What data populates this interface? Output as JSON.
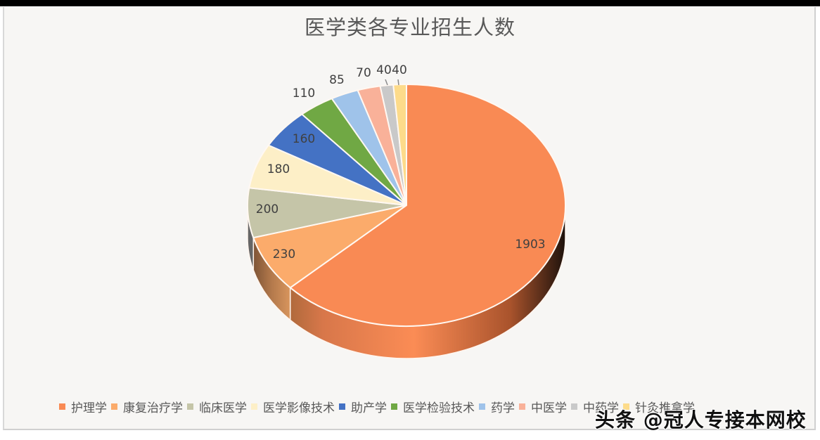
{
  "chart_data": {
    "type": "pie",
    "title": "医学类各专业招生人数",
    "style": "3d-pie",
    "start_angle_deg": 0,
    "direction": "clockwise",
    "categories": [
      "护理学",
      "康复治疗学",
      "临床医学",
      "医学影像技术",
      "助产学",
      "医学检验技术",
      "药学",
      "中医学",
      "中药学",
      "针灸推拿学"
    ],
    "values": [
      1903,
      230,
      200,
      180,
      160,
      110,
      85,
      70,
      40,
      40
    ],
    "colors": [
      "#f98a54",
      "#fbab6b",
      "#c5c5a8",
      "#fdefc7",
      "#4472c4",
      "#70a844",
      "#9fc3ea",
      "#f9b199",
      "#c9c9c9",
      "#fddb8a"
    ],
    "data_labels": [
      "1903",
      "230",
      "200",
      "180",
      "160",
      "110",
      "85",
      "70",
      "40",
      "40"
    ],
    "legend_position": "bottom"
  },
  "legend": {
    "items": [
      {
        "label": "护理学",
        "color": "#f98a54"
      },
      {
        "label": "康复治疗学",
        "color": "#fbab6b"
      },
      {
        "label": "临床医学",
        "color": "#c5c5a8"
      },
      {
        "label": "医学影像技术",
        "color": "#fdefc7"
      },
      {
        "label": "助产学",
        "color": "#4472c4"
      },
      {
        "label": "医学检验技术",
        "color": "#70a844"
      },
      {
        "label": "药学",
        "color": "#9fc3ea"
      },
      {
        "label": "中医学",
        "color": "#f9b199"
      },
      {
        "label": "中药学",
        "color": "#c9c9c9"
      },
      {
        "label": "针灸推拿学",
        "color": "#fddb8a"
      }
    ]
  },
  "watermark": "头条 @冠人专接本网校"
}
